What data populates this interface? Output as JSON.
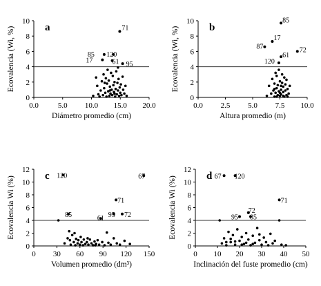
{
  "chart_data": [
    {
      "type": "scatter",
      "panel": "a",
      "xlabel": "Diámetro promedio  (cm)",
      "ylabel": "Ecovalencia (Wi, %)",
      "xlim": [
        0,
        20
      ],
      "ylim": [
        0,
        10
      ],
      "xticks": [
        "0.0",
        "5.0",
        "10.0",
        "15.0",
        "20.0"
      ],
      "yticks": [
        "0",
        "2",
        "4",
        "6",
        "8",
        "10"
      ],
      "reference_line_y": 4.0,
      "grid": false,
      "labeled_points": [
        {
          "label": "71",
          "x": 14.9,
          "y": 8.6
        },
        {
          "label": "85",
          "x": 12.2,
          "y": 5.6
        },
        {
          "label": "120",
          "x": 13.8,
          "y": 5.6
        },
        {
          "label": "17",
          "x": 11.9,
          "y": 4.9
        },
        {
          "label": "61",
          "x": 13.6,
          "y": 4.8
        },
        {
          "label": "95",
          "x": 15.4,
          "y": 4.4
        }
      ],
      "points": [
        [
          10.3,
          0.2
        ],
        [
          10.8,
          2.6
        ],
        [
          11.0,
          1.5
        ],
        [
          11.2,
          0.4
        ],
        [
          11.4,
          0.1
        ],
        [
          11.6,
          0.9
        ],
        [
          11.8,
          2.1
        ],
        [
          12.0,
          0.3
        ],
        [
          12.1,
          3.0
        ],
        [
          12.2,
          1.2
        ],
        [
          12.4,
          0.6
        ],
        [
          12.5,
          2.5
        ],
        [
          12.6,
          0.1
        ],
        [
          12.7,
          1.8
        ],
        [
          12.8,
          3.6
        ],
        [
          12.9,
          0.8
        ],
        [
          13.0,
          2.2
        ],
        [
          13.1,
          0.2
        ],
        [
          13.2,
          1.4
        ],
        [
          13.3,
          0.5
        ],
        [
          13.4,
          3.2
        ],
        [
          13.5,
          1.0
        ],
        [
          13.6,
          0.3
        ],
        [
          13.7,
          2.8
        ],
        [
          13.8,
          1.6
        ],
        [
          13.9,
          0.7
        ],
        [
          14.0,
          2.0
        ],
        [
          14.1,
          0.1
        ],
        [
          14.2,
          1.1
        ],
        [
          14.3,
          3.4
        ],
        [
          14.4,
          0.4
        ],
        [
          14.5,
          1.9
        ],
        [
          14.6,
          0.9
        ],
        [
          14.7,
          2.4
        ],
        [
          14.8,
          0.2
        ],
        [
          14.9,
          1.3
        ],
        [
          15.0,
          0.6
        ],
        [
          15.1,
          1.7
        ],
        [
          15.2,
          0.3
        ],
        [
          15.4,
          2.7
        ],
        [
          15.5,
          1.0
        ],
        [
          15.7,
          0.5
        ],
        [
          15.9,
          1.5
        ],
        [
          16.1,
          0.2
        ],
        [
          13.2,
          0.9
        ],
        [
          14.0,
          0.5
        ],
        [
          12.3,
          1.9
        ],
        [
          14.6,
          3.9
        ]
      ]
    },
    {
      "type": "scatter",
      "panel": "b",
      "xlabel": "Altura promedio  (m)",
      "ylabel": "Ecovalencia (Wi, %)",
      "xlim": [
        0,
        10
      ],
      "ylim": [
        0,
        10
      ],
      "xticks": [
        "0.0",
        "2.5",
        "5.0",
        "7.5",
        "10.0"
      ],
      "yticks": [
        "0",
        "2",
        "4",
        "6",
        "8",
        "10"
      ],
      "reference_line_y": 4.0,
      "grid": false,
      "labeled_points": [
        {
          "label": "85",
          "x": 7.6,
          "y": 9.7
        },
        {
          "label": "17",
          "x": 6.8,
          "y": 7.3
        },
        {
          "label": "87",
          "x": 6.1,
          "y": 6.6
        },
        {
          "label": "72",
          "x": 9.1,
          "y": 6.0
        },
        {
          "label": "61",
          "x": 7.6,
          "y": 5.3
        },
        {
          "label": "120",
          "x": 7.4,
          "y": 4.5
        }
      ],
      "points": [
        [
          6.3,
          0.2
        ],
        [
          6.5,
          1.5
        ],
        [
          6.7,
          0.5
        ],
        [
          6.8,
          2.4
        ],
        [
          6.9,
          0.9
        ],
        [
          7.0,
          0.1
        ],
        [
          7.0,
          1.8
        ],
        [
          7.1,
          3.2
        ],
        [
          7.1,
          0.6
        ],
        [
          7.2,
          1.2
        ],
        [
          7.2,
          2.8
        ],
        [
          7.3,
          0.3
        ],
        [
          7.3,
          1.6
        ],
        [
          7.4,
          0.8
        ],
        [
          7.4,
          3.6
        ],
        [
          7.5,
          0.2
        ],
        [
          7.5,
          2.1
        ],
        [
          7.6,
          1.0
        ],
        [
          7.6,
          0.4
        ],
        [
          7.7,
          1.9
        ],
        [
          7.7,
          3.0
        ],
        [
          7.8,
          0.7
        ],
        [
          7.8,
          1.4
        ],
        [
          7.9,
          0.1
        ],
        [
          7.9,
          2.6
        ],
        [
          8.0,
          0.9
        ],
        [
          8.0,
          1.7
        ],
        [
          8.1,
          0.3
        ],
        [
          8.1,
          2.3
        ],
        [
          8.2,
          1.1
        ],
        [
          8.3,
          0.5
        ],
        [
          8.4,
          1.5
        ],
        [
          7.2,
          0.1
        ],
        [
          7.5,
          0.6
        ],
        [
          7.8,
          0.2
        ],
        [
          8.2,
          0.1
        ],
        [
          7.0,
          1.1
        ],
        [
          7.6,
          1.5
        ]
      ]
    },
    {
      "type": "scatter",
      "panel": "c",
      "xlabel": "Volumen promedio (dm³)",
      "ylabel": "Ecovalencia  Wi (%)",
      "xlim": [
        0,
        150
      ],
      "ylim": [
        0,
        12
      ],
      "xticks": [
        "0",
        "30",
        "60",
        "90",
        "120",
        "150"
      ],
      "yticks": [
        "0",
        "2",
        "4",
        "6",
        "8",
        "10",
        "12"
      ],
      "reference_line_y": 4.0,
      "grid": false,
      "labeled_points": [
        {
          "label": "120",
          "x": 38,
          "y": 11.1
        },
        {
          "label": "67",
          "x": 143,
          "y": 11.0
        },
        {
          "label": "71",
          "x": 107,
          "y": 7.2
        },
        {
          "label": "85",
          "x": 45,
          "y": 5.0
        },
        {
          "label": "95",
          "x": 104,
          "y": 5.0
        },
        {
          "label": "72",
          "x": 115,
          "y": 5.0
        },
        {
          "label": "61",
          "x": 87,
          "y": 4.3
        }
      ],
      "points": [
        [
          32,
          4.0
        ],
        [
          40,
          0.4
        ],
        [
          44,
          1.2
        ],
        [
          46,
          2.3
        ],
        [
          48,
          0.2
        ],
        [
          50,
          1.7
        ],
        [
          52,
          0.6
        ],
        [
          54,
          0.1
        ],
        [
          55,
          1.1
        ],
        [
          57,
          0.4
        ],
        [
          58,
          0.9
        ],
        [
          60,
          0.2
        ],
        [
          62,
          0.6
        ],
        [
          64,
          0.1
        ],
        [
          65,
          1.0
        ],
        [
          67,
          0.3
        ],
        [
          69,
          0.6
        ],
        [
          71,
          0.2
        ],
        [
          73,
          1.0
        ],
        [
          75,
          0.4
        ],
        [
          77,
          0.1
        ],
        [
          79,
          0.7
        ],
        [
          81,
          0.3
        ],
        [
          83,
          0.9
        ],
        [
          85,
          0.2
        ],
        [
          89,
          0.6
        ],
        [
          92,
          0.1
        ],
        [
          95,
          2.1
        ],
        [
          97,
          0.5
        ],
        [
          100,
          0.2
        ],
        [
          104,
          1.2
        ],
        [
          108,
          0.4
        ],
        [
          112,
          0.2
        ],
        [
          118,
          0.8
        ],
        [
          125,
          0.3
        ],
        [
          47,
          0.9
        ],
        [
          53,
          2.0
        ],
        [
          61,
          1.4
        ],
        [
          70,
          1.2
        ],
        [
          80,
          0.1
        ]
      ]
    },
    {
      "type": "scatter",
      "panel": "d",
      "xlabel": "Inclinación del fuste promedio (cm)",
      "ylabel": "Ecovalencia  Wi (%)",
      "xlim": [
        0,
        50
      ],
      "ylim": [
        0,
        12
      ],
      "xticks": [
        "0",
        "10",
        "20",
        "30",
        "40",
        "50"
      ],
      "yticks": [
        "0",
        "2",
        "4",
        "6",
        "8",
        "10",
        "12"
      ],
      "reference_line_y": 4.0,
      "grid": false,
      "labeled_points": [
        {
          "label": "67",
          "x": 13,
          "y": 11.0
        },
        {
          "label": "120",
          "x": 18,
          "y": 11.0
        },
        {
          "label": "71",
          "x": 38,
          "y": 7.2
        },
        {
          "label": "72",
          "x": 24,
          "y": 5.2
        },
        {
          "label": "95",
          "x": 20,
          "y": 4.6
        },
        {
          "label": "85",
          "x": 25,
          "y": 4.6
        }
      ],
      "points": [
        [
          11,
          4.0
        ],
        [
          12,
          0.4
        ],
        [
          13,
          1.2
        ],
        [
          14,
          0.1
        ],
        [
          15,
          2.2
        ],
        [
          16,
          0.6
        ],
        [
          17,
          1.7
        ],
        [
          18,
          0.2
        ],
        [
          19,
          2.6
        ],
        [
          20,
          0.8
        ],
        [
          21,
          1.4
        ],
        [
          22,
          0.3
        ],
        [
          23,
          2.0
        ],
        [
          24,
          1.0
        ],
        [
          25,
          0.1
        ],
        [
          26,
          1.6
        ],
        [
          27,
          0.5
        ],
        [
          28,
          2.8
        ],
        [
          29,
          0.9
        ],
        [
          30,
          0.2
        ],
        [
          31,
          1.3
        ],
        [
          32,
          0.6
        ],
        [
          33,
          0.1
        ],
        [
          34,
          1.9
        ],
        [
          35,
          0.4
        ],
        [
          36,
          0.8
        ],
        [
          38,
          4.0
        ],
        [
          39,
          0.2
        ],
        [
          41,
          0.1
        ],
        [
          16,
          1.1
        ],
        [
          18,
          0.7
        ],
        [
          21,
          0.2
        ],
        [
          23,
          0.5
        ],
        [
          26,
          0.3
        ],
        [
          29,
          1.8
        ],
        [
          14,
          0.6
        ]
      ]
    }
  ]
}
